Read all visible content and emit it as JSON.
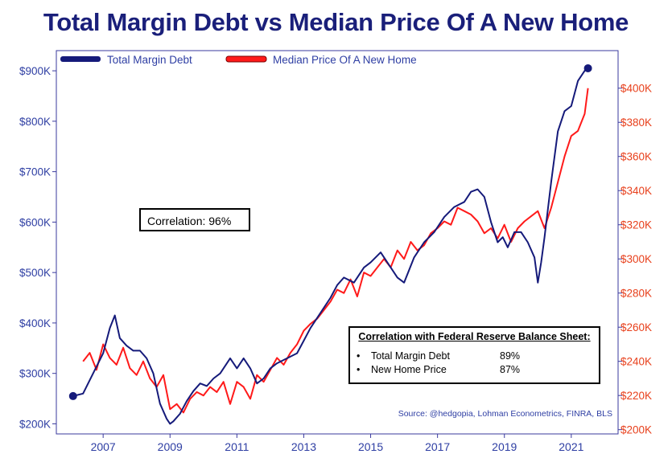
{
  "title": "Total Margin Debt vs Median Price Of A New Home",
  "colors": {
    "navy": "#151a7a",
    "red": "#ff1a1a",
    "axis_left": "#2e3ea3",
    "axis_right": "#e8401c"
  },
  "legend": [
    {
      "label": "Total Margin Debt",
      "color": "#151a7a"
    },
    {
      "label": "Median Price Of A New Home",
      "color": "#ff1a1a"
    }
  ],
  "correlation_box": {
    "text": "Correlation: 96%"
  },
  "fed_box": {
    "title": "Correlation with Federal Reserve Balance Sheet:",
    "rows": [
      {
        "bullet": "•",
        "label": "Total Margin Debt",
        "value": "89%"
      },
      {
        "bullet": "•",
        "label": "New Home Price",
        "value": "87%"
      }
    ]
  },
  "source": "Source: @hedgopia, Lohman Econometrics, FINRA, BLS",
  "chart_data": {
    "type": "line",
    "title": "Total Margin Debt vs Median Price Of A New Home",
    "x_range": [
      2005.6,
      2022.4
    ],
    "x_ticks": [
      2007,
      2009,
      2011,
      2013,
      2015,
      2017,
      2019,
      2021
    ],
    "y_left": {
      "label": "Total Margin Debt",
      "ylim": [
        180000,
        940000
      ],
      "ticks": [
        200000,
        300000,
        400000,
        500000,
        600000,
        700000,
        800000,
        900000
      ],
      "tick_labels": [
        "$200K",
        "$300K",
        "$400K",
        "$500K",
        "$600K",
        "$700K",
        "$800K",
        "$900K"
      ]
    },
    "y_right": {
      "label": "Median Price Of A New Home",
      "ylim": [
        197500,
        422000
      ],
      "ticks": [
        200000,
        220000,
        240000,
        260000,
        280000,
        300000,
        320000,
        340000,
        360000,
        380000,
        400000
      ],
      "tick_labels": [
        "$200K",
        "$220K",
        "$240K",
        "$260K",
        "$280K",
        "$300K",
        "$320K",
        "$340K",
        "$360K",
        "$380K",
        "$400K"
      ]
    },
    "series": [
      {
        "name": "Total Margin Debt",
        "axis": "left",
        "x": [
          2006.1,
          2006.4,
          2006.7,
          2007.0,
          2007.2,
          2007.35,
          2007.5,
          2007.7,
          2007.9,
          2008.1,
          2008.3,
          2008.5,
          2008.7,
          2008.9,
          2009.0,
          2009.1,
          2009.3,
          2009.5,
          2009.7,
          2009.9,
          2010.1,
          2010.3,
          2010.5,
          2010.8,
          2011.0,
          2011.2,
          2011.4,
          2011.6,
          2011.8,
          2012.0,
          2012.2,
          2012.5,
          2012.8,
          2013.0,
          2013.2,
          2013.5,
          2013.8,
          2014.0,
          2014.2,
          2014.5,
          2014.8,
          2015.0,
          2015.3,
          2015.5,
          2015.8,
          2016.0,
          2016.3,
          2016.6,
          2016.9,
          2017.2,
          2017.5,
          2017.8,
          2018.0,
          2018.2,
          2018.4,
          2018.6,
          2018.8,
          2018.95,
          2019.1,
          2019.3,
          2019.5,
          2019.7,
          2019.9,
          2020.0,
          2020.1,
          2020.2,
          2020.4,
          2020.6,
          2020.8,
          2021.0,
          2021.2,
          2021.4,
          2021.5
        ],
        "values": [
          255000,
          260000,
          300000,
          340000,
          390000,
          415000,
          370000,
          355000,
          345000,
          345000,
          330000,
          300000,
          240000,
          210000,
          200000,
          205000,
          220000,
          245000,
          265000,
          280000,
          275000,
          290000,
          300000,
          330000,
          310000,
          330000,
          310000,
          280000,
          290000,
          310000,
          320000,
          330000,
          340000,
          365000,
          390000,
          420000,
          450000,
          475000,
          490000,
          480000,
          510000,
          520000,
          540000,
          520000,
          490000,
          480000,
          530000,
          560000,
          580000,
          610000,
          630000,
          640000,
          660000,
          665000,
          650000,
          600000,
          560000,
          570000,
          550000,
          580000,
          580000,
          560000,
          530000,
          480000,
          520000,
          570000,
          680000,
          780000,
          820000,
          830000,
          880000,
          900000,
          905000
        ]
      },
      {
        "name": "Median Price Of A New Home",
        "axis": "right",
        "x": [
          2006.4,
          2006.6,
          2006.8,
          2007.0,
          2007.2,
          2007.4,
          2007.6,
          2007.8,
          2008.0,
          2008.2,
          2008.4,
          2008.6,
          2008.8,
          2009.0,
          2009.2,
          2009.4,
          2009.6,
          2009.8,
          2010.0,
          2010.2,
          2010.4,
          2010.6,
          2010.8,
          2011.0,
          2011.2,
          2011.4,
          2011.6,
          2011.8,
          2012.0,
          2012.2,
          2012.4,
          2012.6,
          2012.8,
          2013.0,
          2013.2,
          2013.4,
          2013.6,
          2013.8,
          2014.0,
          2014.2,
          2014.4,
          2014.6,
          2014.8,
          2015.0,
          2015.2,
          2015.4,
          2015.6,
          2015.8,
          2016.0,
          2016.2,
          2016.4,
          2016.6,
          2016.8,
          2017.0,
          2017.2,
          2017.4,
          2017.6,
          2017.8,
          2018.0,
          2018.2,
          2018.4,
          2018.6,
          2018.8,
          2019.0,
          2019.2,
          2019.4,
          2019.6,
          2019.8,
          2020.0,
          2020.2,
          2020.4,
          2020.6,
          2020.8,
          2021.0,
          2021.2,
          2021.4,
          2021.5
        ],
        "values": [
          240000,
          245000,
          235000,
          250000,
          242000,
          238000,
          248000,
          236000,
          232000,
          240000,
          230000,
          225000,
          232000,
          212000,
          215000,
          210000,
          218000,
          222000,
          220000,
          225000,
          222000,
          228000,
          215000,
          228000,
          225000,
          218000,
          232000,
          228000,
          235000,
          242000,
          238000,
          245000,
          250000,
          258000,
          262000,
          265000,
          270000,
          275000,
          282000,
          280000,
          288000,
          278000,
          292000,
          290000,
          295000,
          300000,
          295000,
          305000,
          300000,
          310000,
          305000,
          308000,
          315000,
          318000,
          322000,
          320000,
          330000,
          328000,
          326000,
          322000,
          315000,
          318000,
          312000,
          320000,
          310000,
          318000,
          322000,
          325000,
          328000,
          318000,
          330000,
          345000,
          360000,
          372000,
          375000,
          385000,
          400000
        ]
      }
    ]
  }
}
